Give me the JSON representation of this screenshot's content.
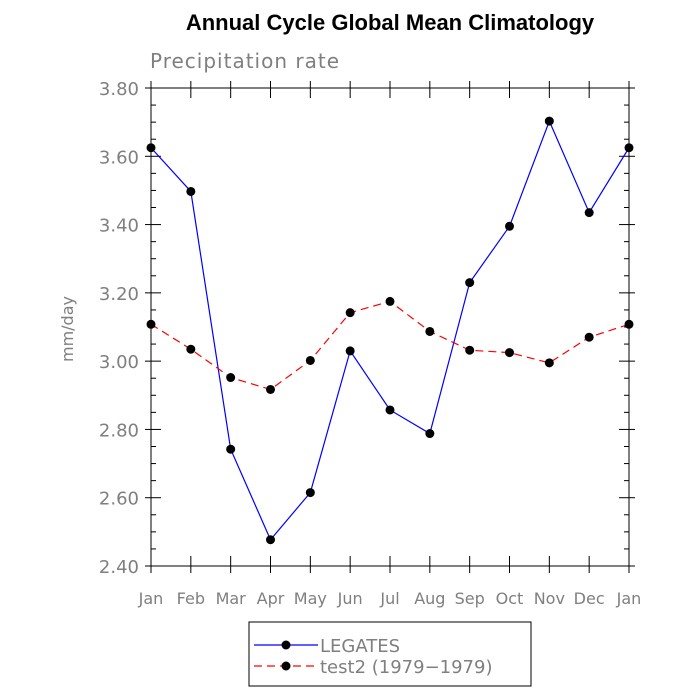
{
  "chart_data": {
    "type": "line",
    "title": "Annual Cycle Global Mean Climatology",
    "subtitle": "Precipitation rate",
    "xlabel": "",
    "ylabel": "mm/day",
    "categories": [
      "Jan",
      "Feb",
      "Mar",
      "Apr",
      "May",
      "Jun",
      "Jul",
      "Aug",
      "Sep",
      "Oct",
      "Nov",
      "Dec",
      "Jan"
    ],
    "ylim": [
      2.4,
      3.8
    ],
    "yticks": [
      "2.40",
      "2.60",
      "2.80",
      "3.00",
      "3.20",
      "3.40",
      "3.60",
      "3.80"
    ],
    "grid": false,
    "legend_position": "bottom-center",
    "series": [
      {
        "name": "LEGATES",
        "color": "#0000ff",
        "line_style": "solid",
        "values": [
          3.625,
          3.497,
          2.742,
          2.477,
          2.615,
          3.03,
          2.857,
          2.788,
          3.23,
          3.395,
          3.703,
          3.435,
          3.625
        ]
      },
      {
        "name": "test2 (1979−1979)",
        "color": "#ff0000",
        "line_style": "dashed",
        "values": [
          3.108,
          3.035,
          2.952,
          2.917,
          3.002,
          3.142,
          3.175,
          3.087,
          3.032,
          3.025,
          2.995,
          3.07,
          3.108
        ]
      }
    ]
  }
}
